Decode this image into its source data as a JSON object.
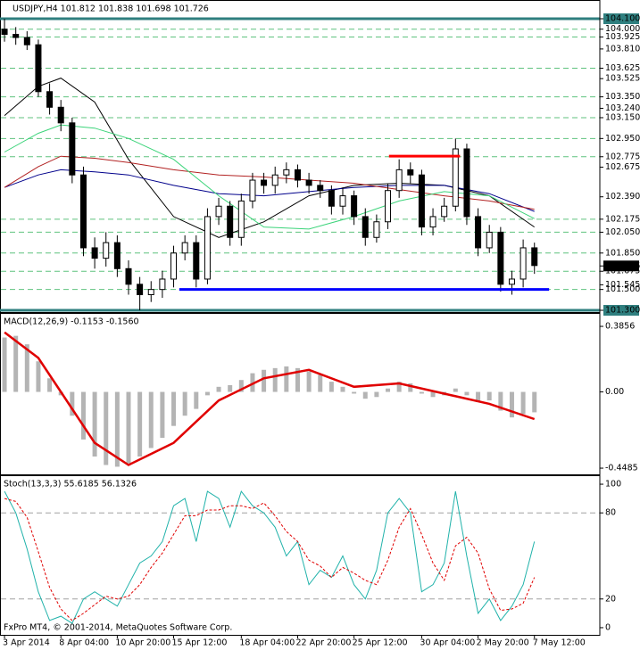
{
  "chart_data": [
    {
      "type": "candlestick",
      "title": "USDJPY,H4  101.812 101.838 101.698 101.726",
      "xlim": [
        -0.4,
        52.8
      ],
      "ylim": [
        101.283,
        104.263
      ],
      "open": [
        104.0,
        103.95,
        103.92,
        103.85,
        103.4,
        103.25,
        103.1,
        102.6,
        101.9,
        101.8,
        101.95,
        101.7,
        101.55,
        101.45,
        101.5,
        101.6,
        101.85,
        101.95,
        101.6,
        102.2,
        102.3,
        102.0,
        102.35,
        102.55,
        102.5,
        102.6,
        102.65,
        102.55,
        102.5,
        102.45,
        102.3,
        102.4,
        102.2,
        102.0,
        102.15,
        102.45,
        102.65,
        102.6,
        102.1,
        102.2,
        102.3,
        102.85,
        102.2,
        101.9,
        102.05,
        101.55,
        101.6,
        101.9
      ],
      "high": [
        104.1,
        104.02,
        103.98,
        103.9,
        103.48,
        103.32,
        103.15,
        102.68,
        102.0,
        102.05,
        102.02,
        101.78,
        101.62,
        101.58,
        101.68,
        101.92,
        102.02,
        102.02,
        102.28,
        102.38,
        102.35,
        102.42,
        102.62,
        102.62,
        102.68,
        102.72,
        102.7,
        102.62,
        102.55,
        102.5,
        102.48,
        102.45,
        102.28,
        102.22,
        102.52,
        102.75,
        102.72,
        102.65,
        102.28,
        102.38,
        102.95,
        102.9,
        102.28,
        102.12,
        102.1,
        101.68,
        101.98,
        101.95
      ],
      "low": [
        103.88,
        103.85,
        103.8,
        103.35,
        103.18,
        103.02,
        102.52,
        101.82,
        101.7,
        101.72,
        101.62,
        101.45,
        101.3,
        101.38,
        101.42,
        101.52,
        101.78,
        101.52,
        101.55,
        102.12,
        101.92,
        101.92,
        102.28,
        102.42,
        102.42,
        102.52,
        102.48,
        102.42,
        102.38,
        102.22,
        102.22,
        102.12,
        101.92,
        101.95,
        102.08,
        102.38,
        102.52,
        102.02,
        102.02,
        102.15,
        102.25,
        102.12,
        101.82,
        101.85,
        101.48,
        101.45,
        101.52,
        101.65
      ],
      "close": [
        103.95,
        103.92,
        103.85,
        103.4,
        103.25,
        103.1,
        102.6,
        101.9,
        101.8,
        101.95,
        101.7,
        101.55,
        101.45,
        101.5,
        101.6,
        101.85,
        101.95,
        101.6,
        102.2,
        102.3,
        102.0,
        102.35,
        102.55,
        102.5,
        102.6,
        102.65,
        102.55,
        102.5,
        102.45,
        102.3,
        102.4,
        102.2,
        102.0,
        102.15,
        102.45,
        102.65,
        102.6,
        102.1,
        102.2,
        102.3,
        102.85,
        102.2,
        101.9,
        102.05,
        101.55,
        101.6,
        101.9,
        101.73
      ],
      "series": [
        {
          "color": "#000000",
          "x": [
            0,
            3,
            5,
            8,
            11,
            15,
            19,
            23,
            27,
            31,
            35,
            39,
            43,
            47
          ],
          "values": [
            103.17,
            103.45,
            103.53,
            103.3,
            102.75,
            102.2,
            102.0,
            102.15,
            102.4,
            102.5,
            102.52,
            102.5,
            102.4,
            102.1
          ]
        },
        {
          "color": "#00008b",
          "x": [
            0,
            3,
            5,
            8,
            11,
            15,
            19,
            23,
            27,
            31,
            35,
            39,
            43,
            47
          ],
          "values": [
            102.48,
            102.6,
            102.65,
            102.63,
            102.6,
            102.5,
            102.42,
            102.4,
            102.44,
            102.48,
            102.5,
            102.5,
            102.42,
            102.25
          ]
        },
        {
          "color": "#b22222",
          "x": [
            0,
            3,
            5,
            8,
            11,
            15,
            19,
            23,
            27,
            31,
            35,
            39,
            43,
            47
          ],
          "values": [
            102.48,
            102.68,
            102.78,
            102.76,
            102.72,
            102.65,
            102.6,
            102.58,
            102.55,
            102.52,
            102.46,
            102.4,
            102.35,
            102.27
          ]
        },
        {
          "color": "#3cd47a",
          "x": [
            0,
            3,
            5,
            8,
            11,
            15,
            19,
            23,
            27,
            31,
            35,
            39,
            43,
            47
          ],
          "values": [
            102.82,
            103.0,
            103.08,
            103.05,
            102.95,
            102.75,
            102.4,
            102.1,
            102.08,
            102.2,
            102.35,
            102.44,
            102.4,
            102.18
          ]
        }
      ],
      "lines": [
        {
          "color": "#0000ff",
          "x": [
            15.5,
            48.3
          ],
          "values": [
            101.5,
            101.5
          ]
        },
        {
          "color": "#ff0000",
          "x": [
            34.1,
            40.4
          ],
          "values": [
            102.78,
            102.78
          ]
        }
      ],
      "yticks": [
        {
          "value": 104.1,
          "label": "104.100",
          "box": "#2f7f7f",
          "line": "#2f7f7f"
        },
        {
          "value": 104.0,
          "label": "104.000",
          "level": true
        },
        {
          "value": 103.925,
          "label": "103.925",
          "level": true
        },
        {
          "value": 103.81,
          "label": "103.810"
        },
        {
          "value": 103.625,
          "label": "103.625",
          "level": true
        },
        103.525,
        {
          "value": 103.35,
          "label": "103.350",
          "level": true
        },
        {
          "value": 103.24,
          "label": "103.240"
        },
        {
          "value": 103.15,
          "label": "103.150",
          "level": true
        },
        {
          "value": 102.95,
          "label": "102.950",
          "level": true
        },
        {
          "value": 102.775,
          "label": "102.775",
          "level": true
        },
        102.675,
        {
          "value": 102.39,
          "label": "102.390"
        },
        {
          "value": 102.175,
          "label": "102.175",
          "level": true
        },
        {
          "value": 102.05,
          "label": "102.050",
          "level": true
        },
        {
          "value": 101.85,
          "label": "101.850",
          "level": true
        },
        {
          "value": 101.726,
          "label": "101.726",
          "box": "#000000"
        },
        {
          "value": 101.675,
          "label": "101.675",
          "level": true
        },
        101.545,
        {
          "value": 101.5,
          "label": "101.500",
          "level": true
        },
        {
          "value": 101.3,
          "label": "101.300",
          "box": "#2f7f7f",
          "line": "#2f7f7f"
        }
      ]
    },
    {
      "type": "macd",
      "title": "MACD(12,26,9) -0.1153 -0.1560",
      "xlim": [
        -0.4,
        52.8
      ],
      "ylim": [
        -0.485,
        0.454
      ],
      "color": "#b4b4b4",
      "values": [
        0.32,
        0.33,
        0.28,
        0.18,
        0.08,
        -0.02,
        -0.14,
        -0.28,
        -0.38,
        -0.43,
        -0.44,
        -0.42,
        -0.38,
        -0.33,
        -0.27,
        -0.2,
        -0.14,
        -0.1,
        -0.02,
        0.03,
        0.04,
        0.07,
        0.11,
        0.13,
        0.14,
        0.15,
        0.14,
        0.12,
        0.1,
        0.06,
        0.03,
        -0.01,
        -0.04,
        -0.03,
        0.02,
        0.06,
        0.05,
        -0.01,
        -0.03,
        -0.02,
        0.02,
        -0.02,
        -0.06,
        -0.05,
        -0.11,
        -0.15,
        -0.13,
        -0.12
      ],
      "signal": {
        "color": "#e00000",
        "x": [
          0,
          3,
          5,
          8,
          11,
          15,
          19,
          23,
          27,
          31,
          35,
          39,
          43,
          47
        ],
        "values": [
          0.35,
          0.2,
          0.0,
          -0.3,
          -0.43,
          -0.3,
          -0.05,
          0.08,
          0.13,
          0.03,
          0.05,
          -0.01,
          -0.07,
          -0.16
        ]
      },
      "yticks": [
        0.3856,
        {
          "value": 0,
          "label": "0.00"
        },
        -0.4485
      ]
    },
    {
      "type": "line",
      "title": "Stoch(13,3,3) 55.6185 56.1326",
      "xlim": [
        -0.4,
        52.8
      ],
      "ylim": [
        -5,
        105
      ],
      "annotation": "FxPro MT4, © 2001-2014, MetaQuotes Software Corp.",
      "categories": [
        "3 Apr 2014",
        null,
        null,
        null,
        null,
        "8 Apr 04:00",
        null,
        null,
        null,
        null,
        "10 Apr 20:00",
        null,
        null,
        null,
        null,
        "15 Apr 12:00",
        null,
        null,
        null,
        null,
        null,
        "18 Apr 04:00",
        null,
        null,
        null,
        null,
        "22 Apr 20:00",
        null,
        null,
        null,
        null,
        "25 Apr 12:00",
        null,
        null,
        null,
        null,
        null,
        "30 Apr 04:00",
        null,
        null,
        null,
        null,
        "2 May 20:00",
        null,
        null,
        null,
        null,
        "7 May 12:00"
      ],
      "series": [
        {
          "color": "#20b2aa",
          "values": [
            95,
            80,
            55,
            25,
            5,
            8,
            3,
            20,
            25,
            20,
            15,
            30,
            45,
            50,
            60,
            85,
            90,
            60,
            95,
            90,
            70,
            95,
            85,
            80,
            70,
            50,
            60,
            30,
            40,
            35,
            50,
            30,
            20,
            40,
            80,
            90,
            80,
            25,
            30,
            45,
            95,
            50,
            10,
            20,
            5,
            15,
            30,
            60
          ]
        },
        {
          "color": "#e00000",
          "dashed": true,
          "values": [
            90,
            88,
            77,
            53,
            28,
            13,
            5,
            10,
            16,
            22,
            20,
            22,
            30,
            42,
            52,
            65,
            78,
            78,
            82,
            82,
            85,
            85,
            83,
            87,
            78,
            67,
            60,
            47,
            43,
            35,
            42,
            38,
            33,
            30,
            47,
            70,
            83,
            65,
            45,
            33,
            57,
            63,
            52,
            27,
            12,
            13,
            17,
            35
          ]
        }
      ],
      "yticks": [
        100,
        {
          "value": 80,
          "label": "80",
          "level": true
        },
        {
          "value": 20,
          "label": "20",
          "level": true
        },
        0
      ]
    }
  ]
}
